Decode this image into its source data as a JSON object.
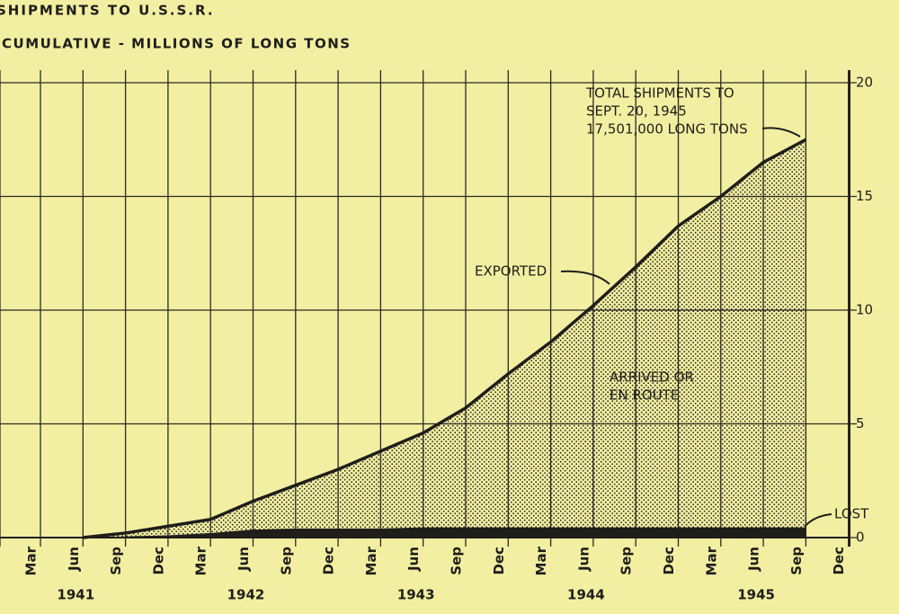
{
  "chart_data": {
    "type": "area",
    "title": "SHIPMENTS TO U.S.S.R.",
    "subtitle": "CUMULATIVE - MILLIONS OF LONG TONS",
    "categories": [
      "Mar",
      "Jun",
      "Sep",
      "Dec",
      "Mar",
      "Jun",
      "Sep",
      "Dec",
      "Mar",
      "Jun",
      "Sep",
      "Dec",
      "Mar",
      "Jun",
      "Sep",
      "Dec",
      "Mar",
      "Jun",
      "Sep",
      "Dec"
    ],
    "years": [
      "1941",
      "1942",
      "1943",
      "1944",
      "1945"
    ],
    "series": [
      {
        "name": "EXPORTED",
        "color": "#1e1e1a",
        "values": [
          null,
          0,
          0.2,
          0.5,
          0.8,
          1.6,
          2.3,
          3.0,
          3.8,
          4.6,
          5.7,
          7.2,
          8.6,
          10.2,
          11.9,
          13.7,
          15.0,
          16.5,
          17.5,
          null
        ]
      },
      {
        "name": "LOST",
        "color": "#1e1e1a",
        "values": [
          null,
          0,
          0.05,
          0.1,
          0.2,
          0.35,
          0.4,
          0.4,
          0.4,
          0.45,
          0.45,
          0.45,
          0.45,
          0.45,
          0.45,
          0.45,
          0.45,
          0.45,
          0.45,
          null
        ]
      }
    ],
    "annotations": {
      "total": [
        "TOTAL SHIPMENTS TO",
        "SEPT. 20, 1945",
        "17,501,000 LONG TONS"
      ],
      "arrived": [
        "ARRIVED OR",
        "EN ROUTE"
      ]
    },
    "ylim": [
      0,
      20
    ],
    "yticks": [
      0,
      5,
      10,
      15,
      20
    ],
    "grid": true
  }
}
